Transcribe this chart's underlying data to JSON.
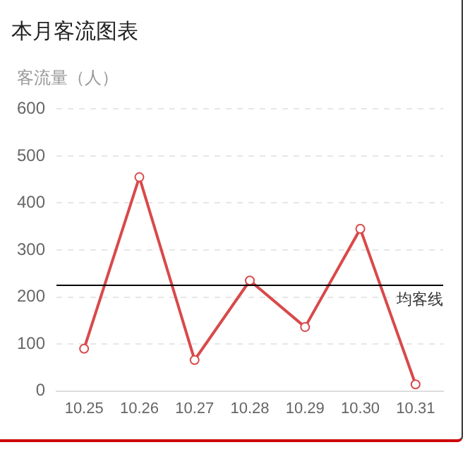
{
  "chart_data": {
    "type": "line",
    "title": "本月客流图表",
    "ylabel": "客流量（人）",
    "categories": [
      "10.25",
      "10.26",
      "10.27",
      "10.28",
      "10.29",
      "10.30",
      "10.31"
    ],
    "series": [
      {
        "color": "#d9494a",
        "values": [
          90,
          455,
          66,
          235,
          136,
          345,
          14
        ]
      }
    ],
    "ylim": [
      0,
      600
    ],
    "yticks": [
      0,
      100,
      200,
      300,
      400,
      500,
      600
    ],
    "ref_lines": [
      {
        "axis": "y",
        "value": 225,
        "label": "均客线",
        "color": "#000000"
      }
    ],
    "grid": "y",
    "legend": false,
    "marker": "circle",
    "line_style": "solid"
  }
}
